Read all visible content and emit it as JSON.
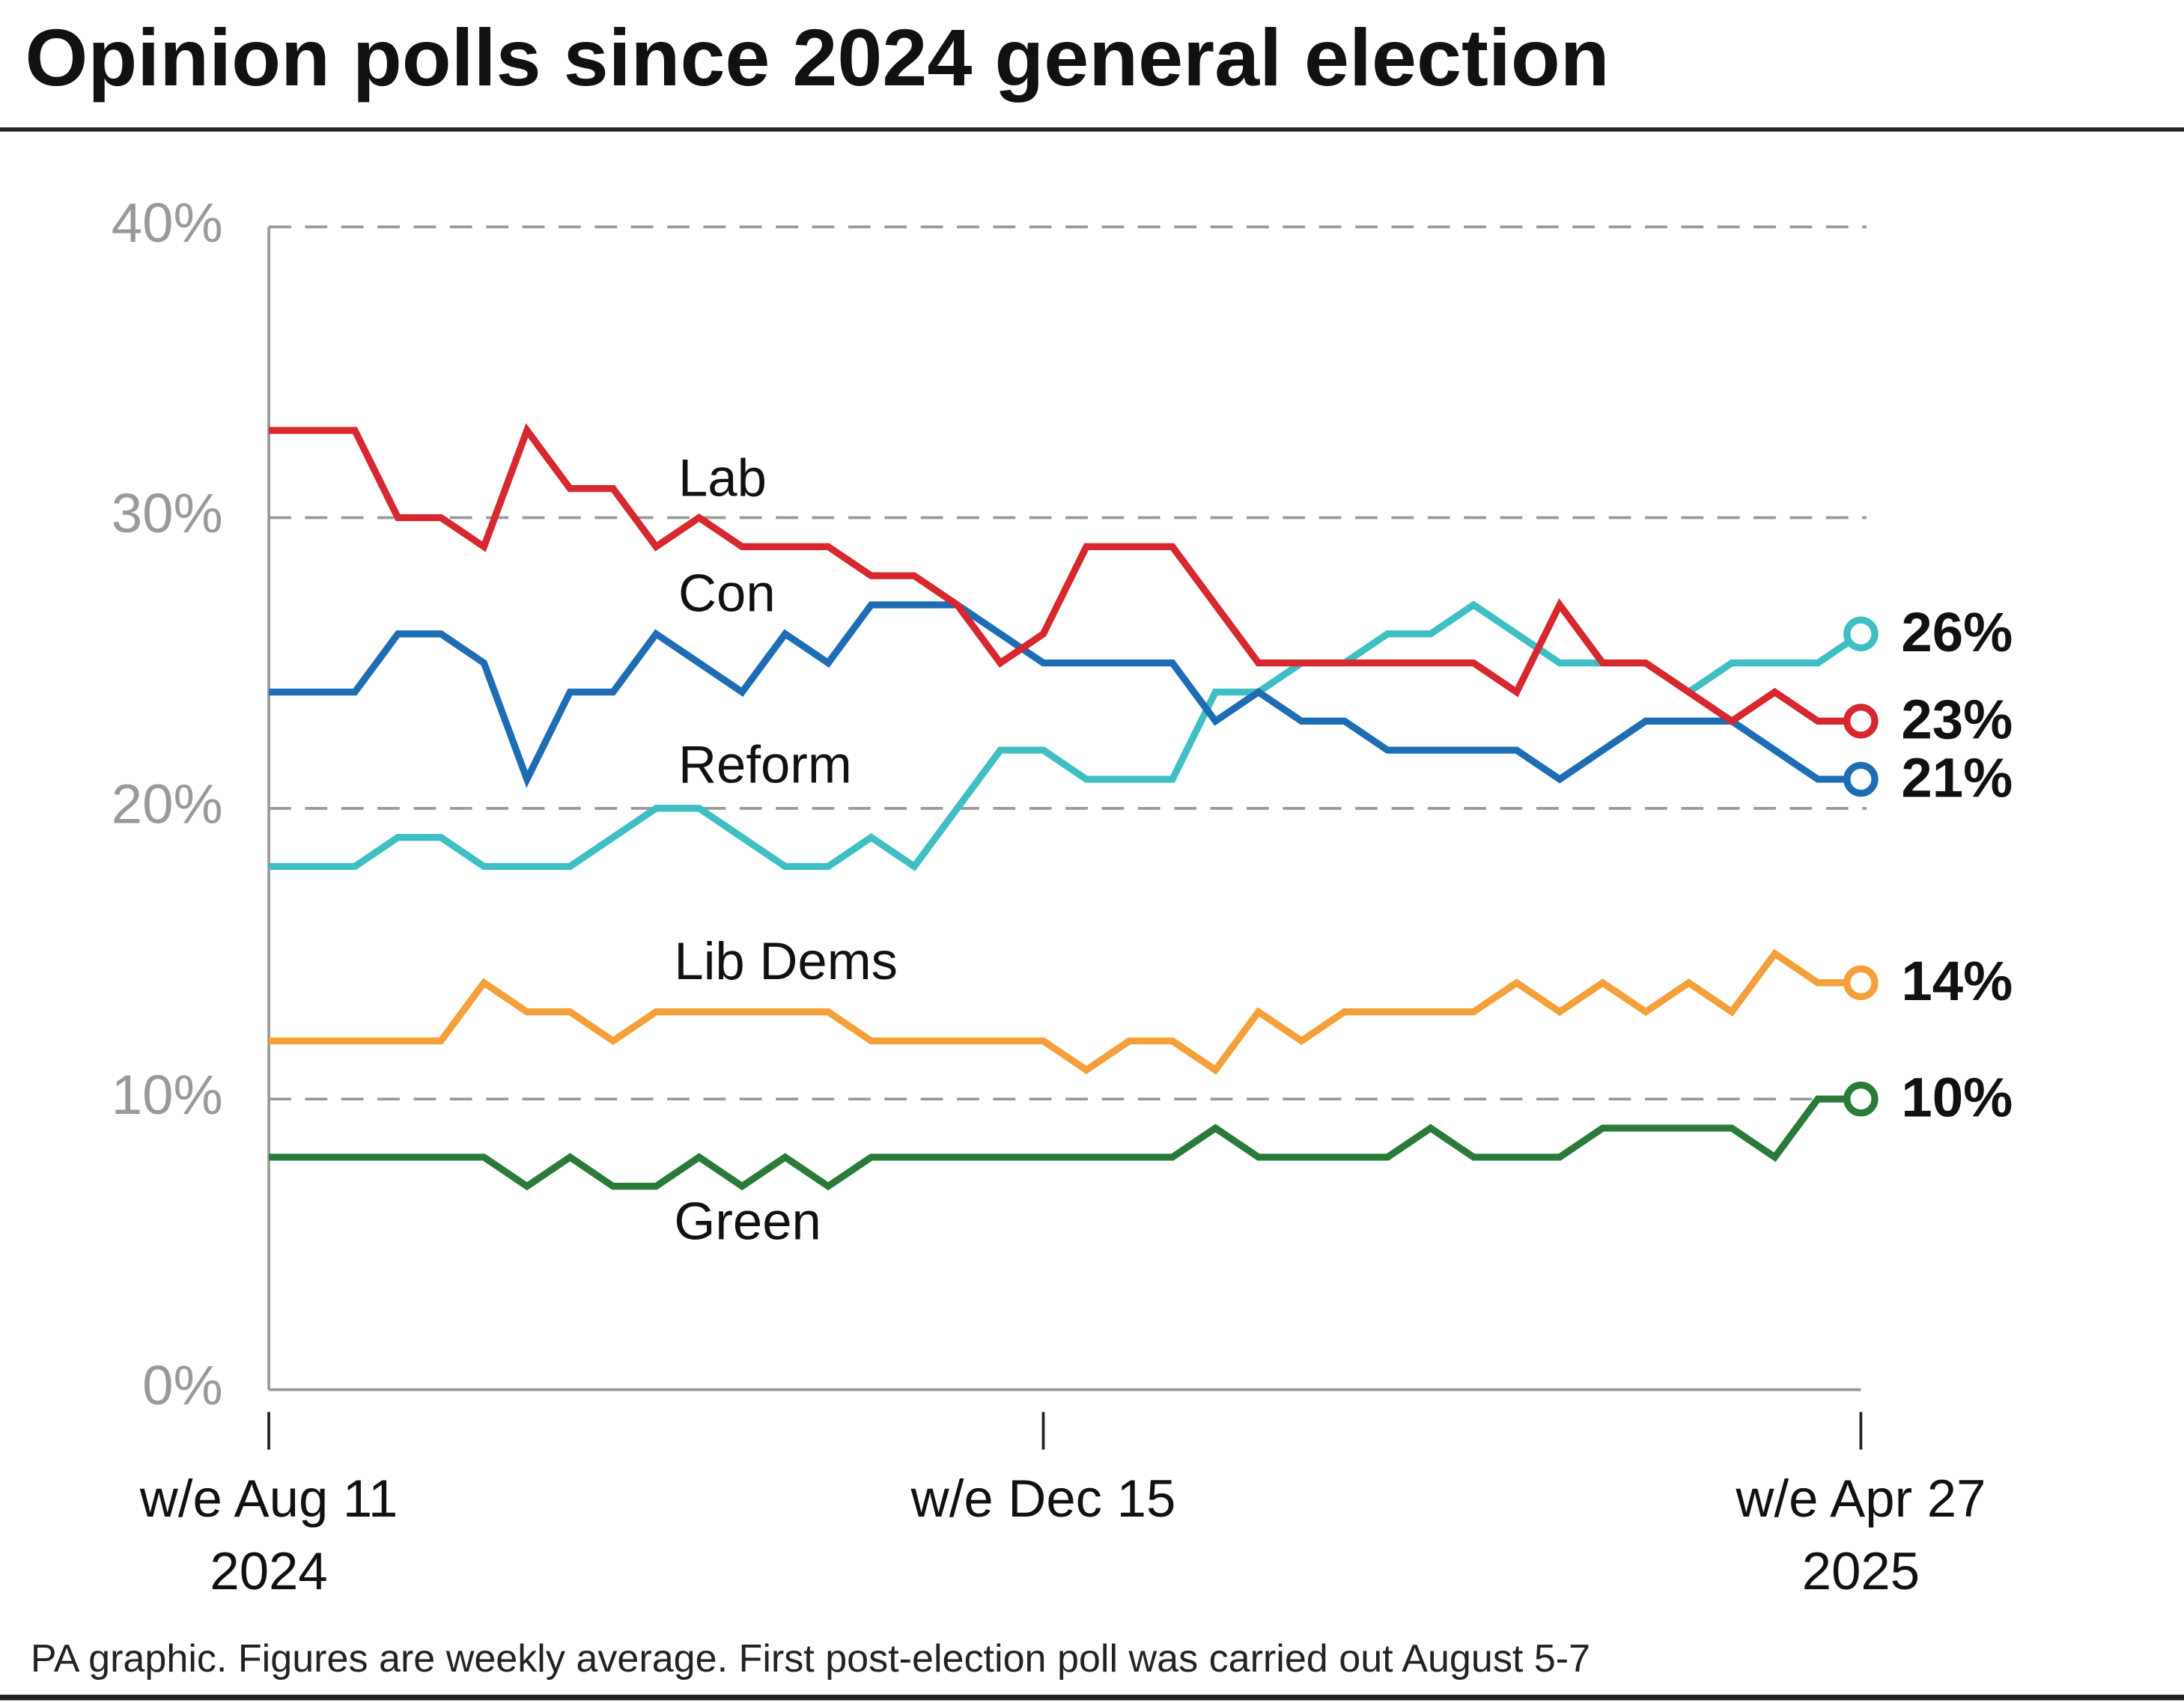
{
  "chart_data": {
    "type": "line",
    "title": "Opinion polls since 2024 general election",
    "note": "PA graphic. Figures are weekly average. First post-election poll was carried out August 5-7",
    "categories": [
      "w/e Aug 11\n2024",
      null,
      null,
      null,
      null,
      null,
      null,
      null,
      null,
      null,
      null,
      null,
      null,
      null,
      null,
      null,
      null,
      null,
      "w/e Dec 15",
      null,
      null,
      null,
      null,
      null,
      null,
      null,
      null,
      null,
      null,
      null,
      null,
      null,
      null,
      null,
      null,
      null,
      null,
      "w/e Apr 27\n2025"
    ],
    "ylim": [
      0,
      40
    ],
    "yticks": [
      {
        "value": 0,
        "label": "0%"
      },
      {
        "value": 10,
        "label": "10%"
      },
      {
        "value": 20,
        "label": "20%"
      },
      {
        "value": 30,
        "label": "30%"
      },
      {
        "value": 40,
        "label": "40%"
      }
    ],
    "grid": true,
    "series": [
      {
        "name": "Lab",
        "color": "#d7282f",
        "values": [
          33,
          33,
          33,
          30,
          30,
          29,
          33,
          31,
          31,
          29,
          30,
          29,
          29,
          29,
          28,
          28,
          27,
          25,
          26,
          29,
          29,
          29,
          27,
          25,
          25,
          25,
          25,
          25,
          25,
          24,
          27,
          25,
          25,
          24,
          23,
          24,
          23,
          23
        ],
        "value_labels": [
          null,
          null,
          null,
          null,
          null,
          null,
          null,
          null,
          null,
          null,
          null,
          null,
          null,
          null,
          null,
          null,
          null,
          null,
          null,
          null,
          null,
          null,
          null,
          null,
          null,
          null,
          null,
          null,
          null,
          null,
          null,
          null,
          null,
          null,
          null,
          null,
          null,
          "23%"
        ]
      },
      {
        "name": "Con",
        "color": "#1d6db5",
        "values": [
          24,
          24,
          24,
          26,
          26,
          25,
          21,
          24,
          24,
          26,
          25,
          24,
          26,
          25,
          27,
          27,
          27,
          26,
          25,
          25,
          25,
          25,
          23,
          24,
          23,
          23,
          22,
          22,
          22,
          22,
          21,
          22,
          23,
          23,
          23,
          22,
          21,
          21
        ],
        "value_labels": [
          null,
          null,
          null,
          null,
          null,
          null,
          null,
          null,
          null,
          null,
          null,
          null,
          null,
          null,
          null,
          null,
          null,
          null,
          null,
          null,
          null,
          null,
          null,
          null,
          null,
          null,
          null,
          null,
          null,
          null,
          null,
          null,
          null,
          null,
          null,
          null,
          null,
          "21%"
        ]
      },
      {
        "name": "Reform",
        "color": "#3fbfc4",
        "values": [
          18,
          18,
          18,
          19,
          19,
          18,
          18,
          18,
          19,
          20,
          20,
          19,
          18,
          18,
          19,
          18,
          20,
          22,
          22,
          21,
          21,
          21,
          24,
          24,
          25,
          25,
          26,
          26,
          27,
          26,
          25,
          25,
          25,
          24,
          25,
          25,
          25,
          26
        ],
        "value_labels": [
          null,
          null,
          null,
          null,
          null,
          null,
          null,
          null,
          null,
          null,
          null,
          null,
          null,
          null,
          null,
          null,
          null,
          null,
          null,
          null,
          null,
          null,
          null,
          null,
          null,
          null,
          null,
          null,
          null,
          null,
          null,
          null,
          null,
          null,
          null,
          null,
          null,
          "26%"
        ]
      },
      {
        "name": "Lib Dems",
        "color": "#f5a03a",
        "values": [
          12,
          12,
          12,
          12,
          12,
          14,
          13,
          13,
          12,
          13,
          13,
          13,
          13,
          13,
          12,
          12,
          12,
          12,
          12,
          11,
          12,
          12,
          11,
          13,
          12,
          13,
          13,
          13,
          13,
          14,
          13,
          14,
          13,
          14,
          13,
          15,
          14,
          14
        ],
        "value_labels": [
          null,
          null,
          null,
          null,
          null,
          null,
          null,
          null,
          null,
          null,
          null,
          null,
          null,
          null,
          null,
          null,
          null,
          null,
          null,
          null,
          null,
          null,
          null,
          null,
          null,
          null,
          null,
          null,
          null,
          null,
          null,
          null,
          null,
          null,
          null,
          null,
          null,
          "14%"
        ]
      },
      {
        "name": "Green",
        "color": "#2a7a3a",
        "values": [
          8,
          8,
          8,
          8,
          8,
          8,
          7,
          8,
          7,
          7,
          8,
          7,
          8,
          7,
          8,
          8,
          8,
          8,
          8,
          8,
          8,
          8,
          9,
          8,
          8,
          8,
          8,
          9,
          8,
          8,
          8,
          9,
          9,
          9,
          9,
          8,
          10,
          10
        ],
        "value_labels": [
          null,
          null,
          null,
          null,
          null,
          null,
          null,
          null,
          null,
          null,
          null,
          null,
          null,
          null,
          null,
          null,
          null,
          null,
          null,
          null,
          null,
          null,
          null,
          null,
          null,
          null,
          null,
          null,
          null,
          null,
          null,
          null,
          null,
          null,
          null,
          null,
          null,
          "10%"
        ]
      }
    ]
  }
}
